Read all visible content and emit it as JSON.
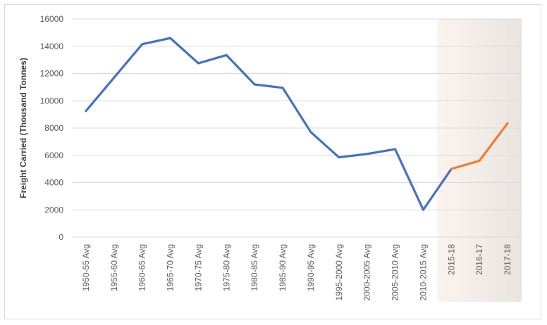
{
  "chart_data": {
    "type": "line",
    "title": "",
    "xlabel": "",
    "ylabel": "Freight Carried (Thousand Tonnes)",
    "ylim": [
      0,
      16000
    ],
    "yticks": [
      0,
      2000,
      4000,
      6000,
      8000,
      10000,
      12000,
      14000,
      16000
    ],
    "grid": true,
    "legend": "none",
    "categories": [
      "1950-55 Avg",
      "1955-60 Avg",
      "1960-65 Avg",
      "1965-70 Avg",
      "1970-75 Avg",
      "1975-80 Avg",
      "1980-85 Avg",
      "1985-90 Avg",
      "1990-95 Avg",
      "1995-2000 Avg",
      "2000-2005 Avg",
      "2005-2010 Avg",
      "2010-2015 Avg",
      "2015-18",
      "2016-17",
      "2017-18"
    ],
    "series": [
      {
        "color": "#4472c4",
        "x": [
          "1950-55 Avg",
          "1955-60 Avg",
          "1960-65 Avg",
          "1965-70 Avg",
          "1970-75 Avg",
          "1975-80 Avg",
          "1980-85 Avg",
          "1985-90 Avg",
          "1990-95 Avg",
          "1995-2000 Avg",
          "2000-2005 Avg",
          "2005-2010 Avg",
          "2010-2015 Avg",
          "2015-18"
        ],
        "values": [
          9250,
          11700,
          14150,
          14600,
          12750,
          13350,
          11200,
          10950,
          7700,
          5850,
          6100,
          6450,
          2000,
          5000
        ]
      },
      {
        "color": "#ed7d31",
        "x": [
          "2015-18",
          "2016-17",
          "2017-18"
        ],
        "values": [
          5000,
          5600,
          8350
        ]
      }
    ],
    "highlight_region": {
      "categories": [
        "2015-18",
        "2016-17",
        "2017-18"
      ],
      "gradient": [
        "#fbf3ee",
        "#e9e4e0"
      ]
    },
    "colors": {
      "gridline": "#d9d9d9",
      "tick_text": "#595959",
      "axis_title": "#404040"
    }
  }
}
